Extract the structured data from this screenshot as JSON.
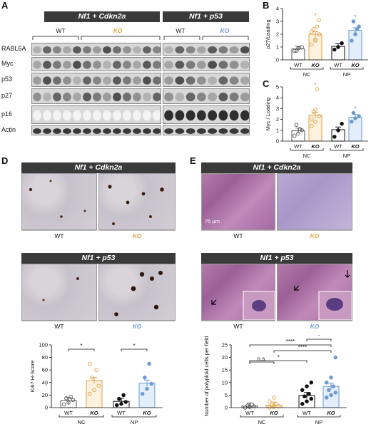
{
  "panels": {
    "A": "A",
    "B": "B",
    "C": "C",
    "D": "D",
    "E": "E"
  },
  "headers": {
    "nf1_cdkn2a": "Nf1 + Cdkn2a",
    "nf1_p53": "Nf1 + p53"
  },
  "group_labels": {
    "wt": "WT",
    "ko": "KO"
  },
  "blot_rows": [
    "RABL6A",
    "Myc",
    "p53",
    "p27",
    "p16",
    "Actin"
  ],
  "charts": {
    "B": {
      "ylabel": "p27/Loading"
    },
    "C": {
      "ylabel": "Myc / Loading"
    },
    "D": {
      "ylabel": "Ki67 H-Score"
    },
    "E": {
      "ylabel": "Number of polyploid cells per field"
    }
  },
  "scalebar": "75 µm",
  "chart_data": [
    {
      "type": "bar",
      "id": "B",
      "ylabel": "p27/Loading",
      "ylim": [
        0,
        4
      ],
      "yticks": [
        0,
        1,
        2,
        3,
        4
      ],
      "categories": [
        "WT",
        "KO",
        "WT",
        "KO"
      ],
      "groups": [
        "NC",
        "NP"
      ],
      "values": [
        0.85,
        2.0,
        1.05,
        2.3
      ],
      "significance": [
        "",
        "*",
        "",
        "*"
      ],
      "points": [
        [
          0.7,
          0.9,
          1.0,
          0.7
        ],
        [
          1.2,
          1.6,
          2.0,
          2.4,
          2.6,
          2.2,
          1.5,
          3.1
        ],
        [
          0.8,
          1.0,
          1.3
        ],
        [
          1.5,
          2.0,
          2.6,
          3.0,
          2.4
        ]
      ]
    },
    {
      "type": "bar",
      "id": "C",
      "ylabel": "Myc / Loading",
      "ylim": [
        0,
        5
      ],
      "yticks": [
        0,
        1,
        2,
        3,
        4,
        5
      ],
      "categories": [
        "WT",
        "KO",
        "WT",
        "KO"
      ],
      "groups": [
        "NC",
        "NP"
      ],
      "values": [
        0.95,
        2.4,
        1.05,
        2.2
      ],
      "significance": [
        "",
        "*",
        "",
        "*"
      ],
      "points": [
        [
          0.5,
          0.7,
          1.0,
          1.5,
          1.1
        ],
        [
          1.4,
          1.8,
          2.3,
          2.7,
          4.8,
          2.0,
          2.9
        ],
        [
          0.4,
          1.0,
          1.6
        ],
        [
          1.8,
          2.1,
          2.3,
          2.6
        ]
      ]
    },
    {
      "type": "bar",
      "id": "D",
      "ylabel": "Ki67 H-Score",
      "ylim": [
        0,
        100
      ],
      "yticks": [
        0,
        20,
        40,
        60,
        80,
        100
      ],
      "categories": [
        "WT",
        "KO",
        "WT",
        "KO"
      ],
      "groups": [
        "NC",
        "NP"
      ],
      "values": [
        11,
        43,
        10,
        39
      ],
      "significance_brackets": [
        {
          "from": 0,
          "to": 1,
          "label": "*"
        },
        {
          "from": 2,
          "to": 3,
          "label": "*"
        }
      ],
      "points": [
        [
          5,
          8,
          12,
          15,
          17
        ],
        [
          22,
          28,
          35,
          48,
          60,
          70
        ],
        [
          4,
          6,
          9,
          14,
          20
        ],
        [
          22,
          30,
          38,
          48,
          70
        ]
      ]
    },
    {
      "type": "bar",
      "id": "E",
      "ylabel": "Number of polyploid cells per field",
      "ylim": [
        0,
        25
      ],
      "yticks": [
        0,
        5,
        10,
        15,
        20,
        25
      ],
      "categories": [
        "WT",
        "KO",
        "WT",
        "KO"
      ],
      "groups": [
        "NC",
        "NP"
      ],
      "values": [
        0.6,
        1.0,
        4.8,
        8.5
      ],
      "significance_brackets": [
        {
          "from": 0,
          "to": 1,
          "label": "n.s."
        },
        {
          "from": 0,
          "to": 2,
          "label": "*"
        },
        {
          "from": 0,
          "to": 3,
          "label": "****"
        },
        {
          "from": 1,
          "to": 3,
          "label": "****"
        },
        {
          "from": 2,
          "to": 3,
          "label": "*"
        }
      ],
      "points": [
        [
          0,
          0.3,
          0.5,
          0.8,
          1.2
        ],
        [
          0,
          0.3,
          0.6,
          1.0,
          1.5,
          2.5,
          4.0
        ],
        [
          1.5,
          2.5,
          3.5,
          4.5,
          5.5,
          7,
          8.5,
          10
        ],
        [
          4,
          5,
          6,
          7,
          8.5,
          10,
          12,
          20
        ]
      ]
    }
  ]
}
